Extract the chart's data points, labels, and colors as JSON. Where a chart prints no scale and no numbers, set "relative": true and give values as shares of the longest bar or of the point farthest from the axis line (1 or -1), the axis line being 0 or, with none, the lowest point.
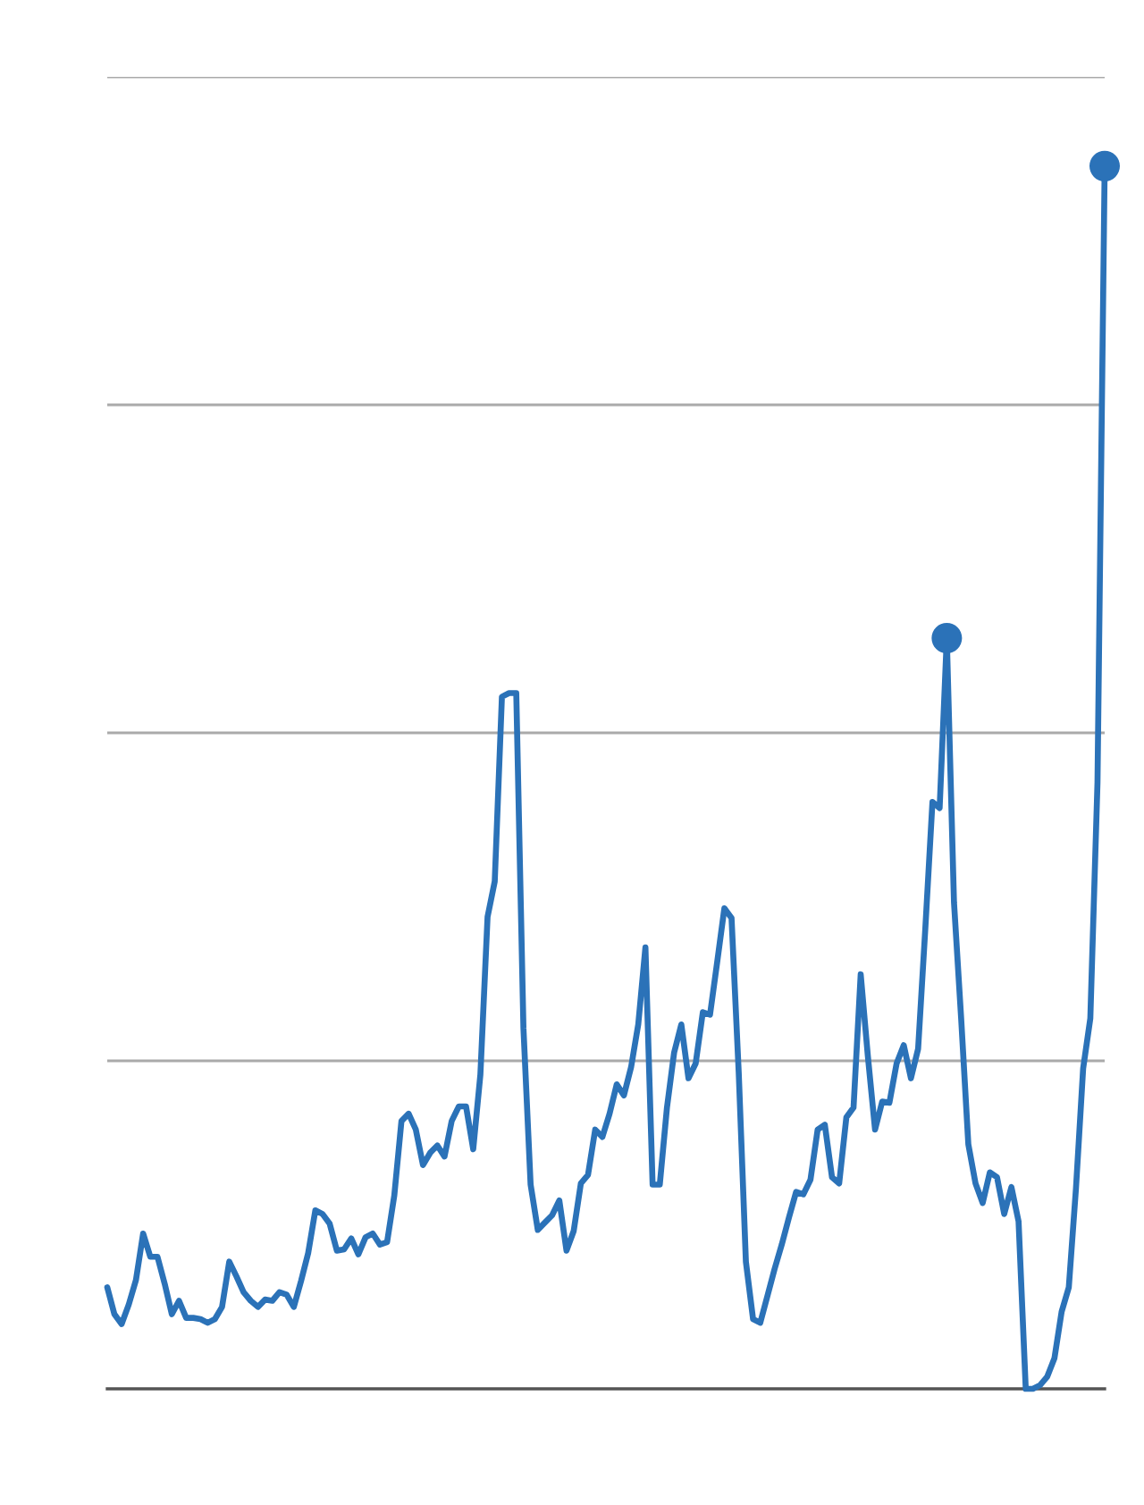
{
  "chart_data": {
    "type": "line",
    "relative": true,
    "grid": "y",
    "categories": [
      null,
      null,
      null,
      null,
      null,
      null,
      null,
      null,
      null,
      null,
      null,
      null,
      null,
      null,
      null,
      null,
      null,
      null,
      null,
      null,
      null,
      null,
      null,
      null,
      null,
      null,
      null,
      null,
      null,
      null,
      null,
      null,
      null,
      null,
      null,
      null,
      null,
      null,
      null,
      null,
      null,
      null,
      null,
      null,
      null,
      null,
      null,
      null,
      null,
      null,
      null,
      null,
      null,
      null,
      null,
      null,
      null,
      null,
      null,
      null,
      null,
      null,
      null,
      null,
      null,
      null,
      null,
      null,
      null,
      null,
      null,
      null,
      null,
      null,
      null,
      null,
      null,
      null,
      null,
      null,
      null,
      null,
      null,
      null,
      null,
      null,
      null,
      null,
      null,
      null,
      null,
      null,
      null,
      null,
      null,
      null,
      null,
      null,
      null,
      null,
      null,
      null,
      null,
      null,
      null,
      null,
      null,
      null,
      null,
      null,
      null,
      null,
      null,
      null,
      null,
      null,
      null,
      null,
      null,
      null,
      null,
      null,
      null,
      null,
      null,
      null,
      null,
      null,
      null,
      null,
      null,
      null,
      null,
      null,
      null,
      null,
      null,
      null,
      null,
      null
    ],
    "series": [
      {
        "color": "#2b72b8",
        "values": [
          0.083,
          0.061,
          0.053,
          0.069,
          0.089,
          0.127,
          0.108,
          0.108,
          0.086,
          0.061,
          0.072,
          0.058,
          0.058,
          0.057,
          0.054,
          0.057,
          0.067,
          0.104,
          0.092,
          0.079,
          0.072,
          0.067,
          0.073,
          0.072,
          0.079,
          0.077,
          0.067,
          0.088,
          0.111,
          0.146,
          0.143,
          0.135,
          0.113,
          0.114,
          0.123,
          0.11,
          0.124,
          0.127,
          0.118,
          0.12,
          0.158,
          0.219,
          0.225,
          0.212,
          0.183,
          0.193,
          0.199,
          0.19,
          0.219,
          0.231,
          0.231,
          0.196,
          0.257,
          0.386,
          0.415,
          0.566,
          0.569,
          0.569,
          0.295,
          0.167,
          0.13,
          0.136,
          0.142,
          0.154,
          0.113,
          0.129,
          0.168,
          0.175,
          0.212,
          0.206,
          0.225,
          0.249,
          0.24,
          0.263,
          0.298,
          0.361,
          0.167,
          0.167,
          0.23,
          0.275,
          0.298,
          0.254,
          0.266,
          0.308,
          0.306,
          0.349,
          0.393,
          0.385,
          0.259,
          0.104,
          0.057,
          0.054,
          0.076,
          0.098,
          0.118,
          0.14,
          0.161,
          0.159,
          0.171,
          0.212,
          0.216,
          0.173,
          0.168,
          0.222,
          0.23,
          0.339,
          0.272,
          0.212,
          0.235,
          0.234,
          0.266,
          0.281,
          0.254,
          0.278,
          0.376,
          0.48,
          0.475,
          0.614,
          0.398,
          0.303,
          0.2,
          0.168,
          0.152,
          0.177,
          0.173,
          0.143,
          0.165,
          0.137,
          0,
          0,
          0.003,
          0.01,
          0.025,
          0.063,
          0.083,
          0.164,
          0.262,
          0.303,
          0.496,
          1
        ]
      }
    ]
  }
}
